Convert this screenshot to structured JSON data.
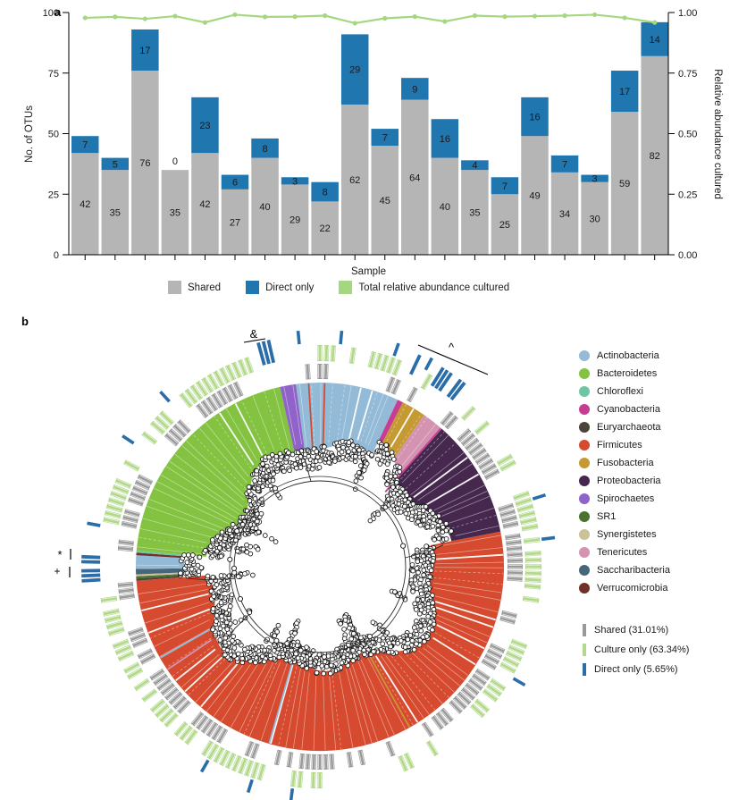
{
  "panel_a": {
    "label": "a",
    "axes": {
      "ylabel_left": "No. of OTUs",
      "ylabel_right": "Relative abundance cultured",
      "xlabel": "Sample",
      "yticks_left": [
        0,
        25,
        50,
        75,
        100
      ],
      "yticks_right": [
        "0.00",
        "0.25",
        "0.50",
        "0.75",
        "1.00"
      ],
      "ylim_left": [
        0,
        100
      ],
      "ylim_right": [
        0,
        1
      ]
    },
    "legend": [
      {
        "label": "Shared",
        "color": "#b5b5b6"
      },
      {
        "label": "Direct only",
        "color": "#2076ae"
      },
      {
        "label": "Total relative abundance cultured",
        "color": "#a5d780"
      }
    ],
    "chart_data": {
      "type": "bar",
      "stacked": true,
      "n_samples": 20,
      "series": [
        {
          "name": "Shared",
          "color": "#b5b5b6",
          "values": [
            42,
            35,
            76,
            35,
            42,
            27,
            40,
            29,
            22,
            62,
            45,
            64,
            40,
            35,
            25,
            49,
            34,
            30,
            59,
            82
          ]
        },
        {
          "name": "Direct only",
          "color": "#2076ae",
          "values": [
            7,
            5,
            17,
            0,
            23,
            6,
            8,
            3,
            8,
            29,
            7,
            9,
            16,
            4,
            7,
            16,
            7,
            3,
            17,
            14
          ]
        }
      ],
      "line_series": {
        "name": "Total relative abundance cultured",
        "color": "#a5d780",
        "axis": "right",
        "values": [
          0.978,
          0.982,
          0.974,
          0.985,
          0.959,
          0.991,
          0.982,
          0.983,
          0.987,
          0.956,
          0.976,
          0.983,
          0.963,
          0.987,
          0.983,
          0.985,
          0.987,
          0.991,
          0.978,
          0.959
        ]
      }
    }
  },
  "panel_b": {
    "label": "b",
    "phyla_legend": [
      {
        "name": "Actinobacteria",
        "color": "#93bbd8"
      },
      {
        "name": "Bacteroidetes",
        "color": "#84c342"
      },
      {
        "name": "Chloroflexi",
        "color": "#6dc7a4"
      },
      {
        "name": "Cyanobacteria",
        "color": "#c73d92"
      },
      {
        "name": "Euryarchaeota",
        "color": "#4a443a"
      },
      {
        "name": "Firmicutes",
        "color": "#d64b2f"
      },
      {
        "name": "Fusobacteria",
        "color": "#c59a33"
      },
      {
        "name": "Proteobacteria",
        "color": "#46284f"
      },
      {
        "name": "Spirochaetes",
        "color": "#8f63c7"
      },
      {
        "name": "SR1",
        "color": "#4a7231"
      },
      {
        "name": "Synergistetes",
        "color": "#cbc299"
      },
      {
        "name": "Tenericutes",
        "color": "#d493b0"
      },
      {
        "name": "Saccharibacteria",
        "color": "#48667b"
      },
      {
        "name": "Verrucomicrobia",
        "color": "#713129"
      }
    ],
    "ring_legend": [
      {
        "label": "Shared (31.01%)",
        "color": "#999999"
      },
      {
        "label": "Culture only (63.34%)",
        "color": "#b2d98a"
      },
      {
        "label": "Direct only (5.65%)",
        "color": "#2a6da8"
      }
    ],
    "annotations": {
      "amp": "&",
      "caret": "^",
      "star": "*",
      "plus": "+"
    },
    "tree": {
      "ring_colors": {
        "shared": "#999999",
        "culture": "#b2d98a",
        "direct": "#2a6da8"
      },
      "wedges": [
        {
          "phylum": "Actinobacteria",
          "start": 352.5,
          "end": 385.0,
          "r_in": 124
        },
        {
          "phylum": "Cyanobacteria",
          "start": 25.0,
          "end": 26.8,
          "r_in": 148
        },
        {
          "phylum": "Fusobacteria",
          "start": 26.8,
          "end": 34.5,
          "r_in": 150
        },
        {
          "phylum": "Tenericutes",
          "start": 34.5,
          "end": 41.5,
          "r_in": 152
        },
        {
          "phylum": "Proteobacteria",
          "start": 41.5,
          "end": 79.0,
          "r_in": 146
        },
        {
          "phylum": "Firmicutes",
          "start": 79.0,
          "end": 265.6,
          "r_in": 122
        },
        {
          "phylum": "Euryarchaeota",
          "start": 265.6,
          "end": 266.3,
          "r_in": 152
        },
        {
          "phylum": "SR1",
          "start": 266.3,
          "end": 267.0,
          "r_in": 152
        },
        {
          "phylum": "Synergistetes",
          "start": 267.0,
          "end": 267.6,
          "r_in": 152
        },
        {
          "phylum": "Saccharibacteria",
          "start": 267.6,
          "end": 269.3,
          "r_in": 150
        },
        {
          "phylum": "Actinobacteria",
          "start": 269.3,
          "end": 273.6,
          "r_in": 148
        },
        {
          "phylum": "Verrucomicrobia",
          "start": 273.6,
          "end": 274.4,
          "r_in": 150
        },
        {
          "phylum": "Chloroflexi",
          "start": 274.4,
          "end": 275.0,
          "r_in": 150
        },
        {
          "phylum": "Bacteroidetes",
          "start": 275.0,
          "end": 347.5,
          "r_in": 124
        },
        {
          "phylum": "Spirochaetes",
          "start": 347.5,
          "end": 352.5,
          "r_in": 128
        }
      ],
      "slivers": [
        {
          "phylum": "Firmicutes",
          "angle": 356.5
        },
        {
          "phylum": "Firmicutes",
          "angle": 1.5
        },
        {
          "phylum": "Cyanobacteria",
          "angle": 41.2
        },
        {
          "phylum": "Fusobacteria",
          "angle": 150.8
        },
        {
          "phylum": "Actinobacteria",
          "angle": 196.0
        },
        {
          "phylum": "Tenericutes",
          "angle": 236.0
        },
        {
          "phylum": "Actinobacteria",
          "angle": 240.3
        }
      ],
      "annotation_clusters": {
        "amp": [
          344.6,
          345.9,
          347.2
        ],
        "caret": [
          25.3,
          31.8,
          33.0,
          34.2,
          37.0,
          38.2
        ],
        "star": [
          271.2,
          272.4
        ],
        "plus": [
          266.6,
          267.8,
          269.0
        ]
      }
    }
  }
}
